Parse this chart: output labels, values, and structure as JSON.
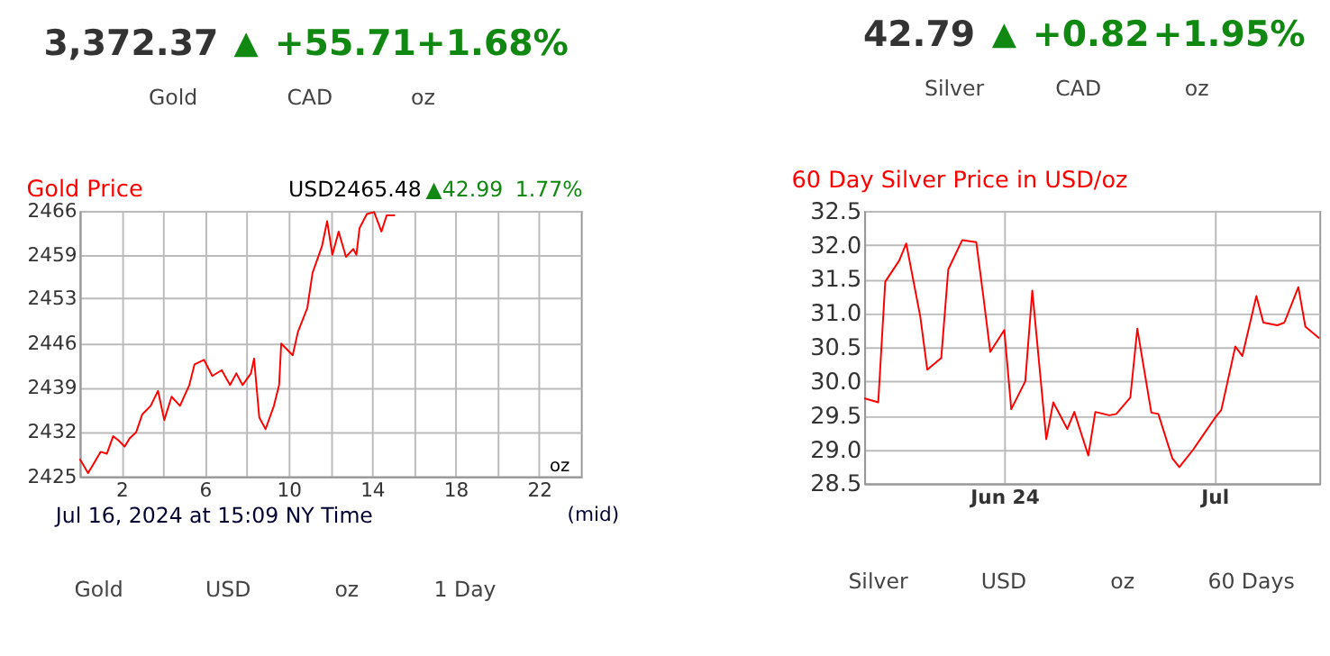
{
  "chart_data": [
    {
      "type": "line",
      "title": "Gold Price",
      "x": [
        0,
        0.17,
        0.4,
        0.73,
        1.0,
        1.3,
        1.6,
        1.85,
        2.15,
        2.4,
        2.7,
        3.0,
        3.4,
        3.75,
        4.05,
        4.4,
        4.8,
        5.25,
        5.5,
        5.95,
        6.35,
        6.8,
        7.2,
        7.5,
        7.8,
        8.2,
        8.35,
        8.6,
        8.9,
        9.3,
        9.55,
        9.65,
        10.2,
        10.45,
        10.9,
        11.15,
        11.6,
        11.85,
        12.1,
        12.4,
        12.75,
        13.1,
        13.25,
        13.4,
        13.75,
        14.1,
        14.45,
        14.7,
        15.1
      ],
      "series": [
        {
          "color": "#ff0000",
          "values": [
            2427.7,
            2426.8,
            2425.5,
            2427.3,
            2428.8,
            2428.5,
            2431.2,
            2430.6,
            2429.6,
            2430.9,
            2431.8,
            2434.6,
            2435.9,
            2438.2,
            2433.7,
            2437.3,
            2435.9,
            2439.1,
            2442.3,
            2443.0,
            2440.5,
            2441.4,
            2439.1,
            2440.9,
            2439.1,
            2440.9,
            2443.2,
            2434.1,
            2432.3,
            2435.9,
            2439.1,
            2445.5,
            2443.7,
            2447.3,
            2451.0,
            2456.4,
            2460.5,
            2464.4,
            2459.2,
            2462.8,
            2458.9,
            2460.1,
            2459.2,
            2463.3,
            2465.5,
            2465.8,
            2462.8,
            2465.3,
            2465.3
          ]
        }
      ],
      "xlim": [
        0,
        24
      ],
      "xticks": [
        2,
        {
          "value": 4,
          "label": null
        },
        6,
        {
          "value": 8,
          "label": null
        },
        10,
        {
          "value": 12,
          "label": null
        },
        14,
        {
          "value": 16,
          "label": null
        },
        18,
        {
          "value": 20,
          "label": null
        },
        22
      ],
      "ylim": [
        2425,
        2466
      ],
      "yticks": [
        2425,
        {
          "value": 2431.83,
          "label": "2432"
        },
        {
          "value": 2438.67,
          "label": "2439"
        },
        {
          "value": 2445.5,
          "label": "2446"
        },
        {
          "value": 2452.5,
          "label": "2453"
        },
        {
          "value": 2459.17,
          "label": "2459"
        },
        2466
      ],
      "grid": true,
      "line_style": "solid",
      "marker": "none",
      "annotations": [
        "3,372.37",
        "▲",
        "+55.71",
        "+1.68%",
        "Gold",
        "CAD",
        "oz",
        "USD2465.48",
        "▲42.99",
        "1.77%",
        "oz",
        "Jul 16, 2024 at 15:09 NY Time",
        "(mid)",
        "Gold",
        "USD",
        "oz",
        "1 Day"
      ]
    },
    {
      "type": "line",
      "title": "60 Day Silver Price in USD/oz",
      "x": [
        "2024-05-12",
        "2024-05-14",
        "2024-05-15",
        "2024-05-17",
        "2024-05-18",
        "2024-05-20",
        "2024-05-21",
        "2024-05-23",
        "2024-05-24",
        "2024-05-26",
        "2024-05-28",
        "2024-05-29",
        "2024-05-30",
        "2024-06-01",
        "2024-06-02",
        "2024-06-04",
        "2024-06-05",
        "2024-06-07",
        "2024-06-08",
        "2024-06-10",
        "2024-06-11",
        "2024-06-13",
        "2024-06-14",
        "2024-06-16",
        "2024-06-17",
        "2024-06-19",
        "2024-06-20",
        "2024-06-22",
        "2024-06-23",
        "2024-06-25",
        "2024-06-26",
        "2024-06-28",
        "2024-06-29",
        "2024-07-01",
        "2024-07-02",
        "2024-07-04",
        "2024-07-05",
        "2024-07-07",
        "2024-07-08",
        "2024-07-10",
        "2024-07-11",
        "2024-07-13",
        "2024-07-14",
        "2024-07-16"
      ],
      "series": [
        {
          "color": "#ff0000",
          "values": [
            29.75,
            29.69,
            31.46,
            31.77,
            32.02,
            30.95,
            30.17,
            30.34,
            31.64,
            32.07,
            32.04,
            31.25,
            30.43,
            30.75,
            29.59,
            30.0,
            31.33,
            29.15,
            29.69,
            29.3,
            29.55,
            28.91,
            29.55,
            29.5,
            29.52,
            29.76,
            30.77,
            29.54,
            29.52,
            28.87,
            28.74,
            29.0,
            29.15,
            29.45,
            29.58,
            30.51,
            30.37,
            31.25,
            30.86,
            30.82,
            30.86,
            31.38,
            30.8,
            30.63
          ]
        }
      ],
      "xlim": [
        "2024-05-12",
        "2024-07-16"
      ],
      "xticks": [
        {
          "value": "2024-06-01",
          "label": "Jun 24"
        },
        {
          "value": "2024-07-01",
          "label": "Jul"
        }
      ],
      "ylim": [
        28.5,
        32.5
      ],
      "yticks": [
        28.5,
        {
          "value": 29,
          "label": "29.0"
        },
        29.5,
        {
          "value": 30,
          "label": "30.0"
        },
        30.5,
        {
          "value": 31,
          "label": "31.0"
        },
        31.5,
        {
          "value": 32,
          "label": "32.0"
        },
        32.5
      ],
      "grid": true,
      "line_style": "solid",
      "marker": "none",
      "annotations": [
        "42.79",
        "▲",
        "+0.82",
        "+1.95%",
        "Silver",
        "CAD",
        "oz",
        "Silver",
        "USD",
        "oz",
        "60 Days"
      ]
    }
  ]
}
